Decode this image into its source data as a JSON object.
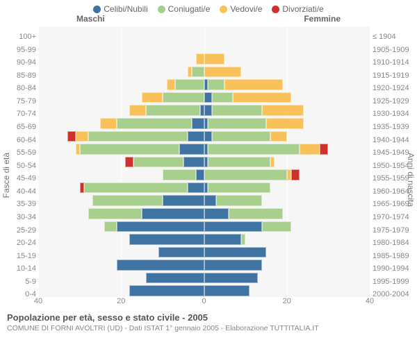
{
  "legend": {
    "items": [
      {
        "key": "celibi",
        "label": "Celibi/Nubili",
        "color": "#3f73a1"
      },
      {
        "key": "coniugati",
        "label": "Coniugati/e",
        "color": "#a8cf8e"
      },
      {
        "key": "vedovi",
        "label": "Vedovi/e",
        "color": "#f8c15a"
      },
      {
        "key": "divorziati",
        "label": "Divorziati/e",
        "color": "#ce3129"
      }
    ]
  },
  "headers": {
    "males": "Maschi",
    "females": "Femmine"
  },
  "axis": {
    "left_title": "Fasce di età",
    "right_title": "Anni di nascita",
    "xmax": 40,
    "xticks_left": [
      40,
      20,
      0
    ],
    "xticks_right": [
      20,
      40
    ]
  },
  "colors": {
    "celibi": "#3f73a1",
    "coniugati": "#a8cf8e",
    "vedovi": "#f8c15a",
    "divorziati": "#ce3129",
    "plot_bg": "#f6f6f6",
    "grid": "#ffffff"
  },
  "rows": [
    {
      "age": "100+",
      "birth": "≤ 1904",
      "m": {
        "c": 0,
        "m": 0,
        "w": 0,
        "d": 0
      },
      "f": {
        "c": 0,
        "m": 0,
        "w": 0,
        "d": 0
      }
    },
    {
      "age": "95-99",
      "birth": "1905-1909",
      "m": {
        "c": 0,
        "m": 0,
        "w": 0,
        "d": 0
      },
      "f": {
        "c": 0,
        "m": 0,
        "w": 0,
        "d": 0
      }
    },
    {
      "age": "90-94",
      "birth": "1910-1914",
      "m": {
        "c": 0,
        "m": 0,
        "w": 2,
        "d": 0
      },
      "f": {
        "c": 0,
        "m": 0,
        "w": 5,
        "d": 0
      }
    },
    {
      "age": "85-89",
      "birth": "1915-1919",
      "m": {
        "c": 0,
        "m": 3,
        "w": 1,
        "d": 0
      },
      "f": {
        "c": 0,
        "m": 0,
        "w": 9,
        "d": 0
      }
    },
    {
      "age": "80-84",
      "birth": "1920-1924",
      "m": {
        "c": 0,
        "m": 7,
        "w": 2,
        "d": 0
      },
      "f": {
        "c": 1,
        "m": 4,
        "w": 14,
        "d": 0
      }
    },
    {
      "age": "75-79",
      "birth": "1925-1929",
      "m": {
        "c": 0,
        "m": 10,
        "w": 5,
        "d": 0
      },
      "f": {
        "c": 2,
        "m": 5,
        "w": 14,
        "d": 0
      }
    },
    {
      "age": "70-74",
      "birth": "1930-1934",
      "m": {
        "c": 1,
        "m": 13,
        "w": 4,
        "d": 0
      },
      "f": {
        "c": 2,
        "m": 12,
        "w": 10,
        "d": 0
      }
    },
    {
      "age": "65-69",
      "birth": "1935-1939",
      "m": {
        "c": 3,
        "m": 18,
        "w": 4,
        "d": 0
      },
      "f": {
        "c": 1,
        "m": 14,
        "w": 9,
        "d": 0
      }
    },
    {
      "age": "60-64",
      "birth": "1940-1944",
      "m": {
        "c": 4,
        "m": 24,
        "w": 3,
        "d": 2
      },
      "f": {
        "c": 2,
        "m": 14,
        "w": 4,
        "d": 0
      }
    },
    {
      "age": "55-59",
      "birth": "1945-1949",
      "m": {
        "c": 6,
        "m": 24,
        "w": 1,
        "d": 0
      },
      "f": {
        "c": 1,
        "m": 22,
        "w": 5,
        "d": 2
      }
    },
    {
      "age": "50-54",
      "birth": "1950-1954",
      "m": {
        "c": 5,
        "m": 12,
        "w": 0,
        "d": 2
      },
      "f": {
        "c": 1,
        "m": 15,
        "w": 1,
        "d": 0
      }
    },
    {
      "age": "45-49",
      "birth": "1955-1959",
      "m": {
        "c": 2,
        "m": 8,
        "w": 0,
        "d": 0
      },
      "f": {
        "c": 0,
        "m": 20,
        "w": 1,
        "d": 2
      }
    },
    {
      "age": "40-44",
      "birth": "1960-1964",
      "m": {
        "c": 4,
        "m": 25,
        "w": 0,
        "d": 1
      },
      "f": {
        "c": 1,
        "m": 15,
        "w": 0,
        "d": 0
      }
    },
    {
      "age": "35-39",
      "birth": "1965-1969",
      "m": {
        "c": 10,
        "m": 17,
        "w": 0,
        "d": 0
      },
      "f": {
        "c": 3,
        "m": 11,
        "w": 0,
        "d": 0
      }
    },
    {
      "age": "30-34",
      "birth": "1970-1974",
      "m": {
        "c": 15,
        "m": 13,
        "w": 0,
        "d": 0
      },
      "f": {
        "c": 6,
        "m": 13,
        "w": 0,
        "d": 0
      }
    },
    {
      "age": "25-29",
      "birth": "1975-1979",
      "m": {
        "c": 21,
        "m": 3,
        "w": 0,
        "d": 0
      },
      "f": {
        "c": 14,
        "m": 7,
        "w": 0,
        "d": 0
      }
    },
    {
      "age": "20-24",
      "birth": "1980-1984",
      "m": {
        "c": 18,
        "m": 0,
        "w": 0,
        "d": 0
      },
      "f": {
        "c": 9,
        "m": 1,
        "w": 0,
        "d": 0
      }
    },
    {
      "age": "15-19",
      "birth": "1985-1989",
      "m": {
        "c": 11,
        "m": 0,
        "w": 0,
        "d": 0
      },
      "f": {
        "c": 15,
        "m": 0,
        "w": 0,
        "d": 0
      }
    },
    {
      "age": "10-14",
      "birth": "1990-1994",
      "m": {
        "c": 21,
        "m": 0,
        "w": 0,
        "d": 0
      },
      "f": {
        "c": 14,
        "m": 0,
        "w": 0,
        "d": 0
      }
    },
    {
      "age": "5-9",
      "birth": "1995-1999",
      "m": {
        "c": 14,
        "m": 0,
        "w": 0,
        "d": 0
      },
      "f": {
        "c": 13,
        "m": 0,
        "w": 0,
        "d": 0
      }
    },
    {
      "age": "0-4",
      "birth": "2000-2004",
      "m": {
        "c": 18,
        "m": 0,
        "w": 0,
        "d": 0
      },
      "f": {
        "c": 11,
        "m": 0,
        "w": 0,
        "d": 0
      }
    }
  ],
  "caption": {
    "title": "Popolazione per età, sesso e stato civile - 2005",
    "sub": "COMUNE DI FORNI AVOLTRI (UD) - Dati ISTAT 1° gennaio 2005 - Elaborazione TUTTITALIA.IT"
  }
}
